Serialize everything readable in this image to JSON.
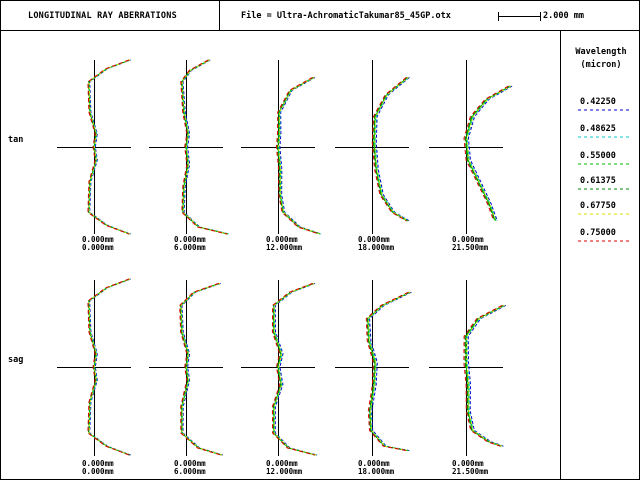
{
  "header": {
    "title": "LONGITUDINAL RAY ABERRATIONS",
    "file": "File = Ultra-AchromaticTakumar85_45GP.otx",
    "scale_label": "2.000 mm"
  },
  "legend": {
    "title_line1": "Wavelength",
    "title_line2": "(micron)",
    "entries": [
      {
        "label": "0.42250",
        "color": "#0000cc"
      },
      {
        "label": "0.48625",
        "color": "#00cccc"
      },
      {
        "label": "0.55000",
        "color": "#00bb00"
      },
      {
        "label": "0.61375",
        "color": "#008800"
      },
      {
        "label": "0.67750",
        "color": "#dddd00"
      },
      {
        "label": "0.75000",
        "color": "#dd0000"
      }
    ]
  },
  "rows": {
    "tan": "tan",
    "sag": "sag"
  },
  "fields": [
    {
      "line1": "0.000mm",
      "line2": "0.000mm"
    },
    {
      "line1": "0.000mm",
      "line2": "6.000mm"
    },
    {
      "line1": "0.000mm",
      "line2": "12.000mm"
    },
    {
      "line1": "0.000mm",
      "line2": "18.000mm"
    },
    {
      "line1": "0.000mm",
      "line2": "21.500mm"
    }
  ],
  "chart_data": {
    "type": "line",
    "xlabel": "",
    "ylabel": "",
    "scale_mm": 2.0,
    "description_axes": "x = longitudinal focus shift (mm), y = normalized pupil height -1..1",
    "panels": [
      {
        "row": "tan",
        "field_mm": 0.0,
        "points": [
          [
            1.7,
            1
          ],
          [
            0.6,
            0.9
          ],
          [
            -0.25,
            0.75
          ],
          [
            -0.2,
            0.4
          ],
          [
            0.1,
            0.15
          ],
          [
            0,
            0
          ],
          [
            0.1,
            -0.15
          ],
          [
            -0.2,
            -0.4
          ],
          [
            -0.25,
            -0.75
          ],
          [
            0.6,
            -0.9
          ],
          [
            1.7,
            -1
          ]
        ]
      },
      {
        "row": "tan",
        "field_mm": 6.0,
        "points": [
          [
            1.1,
            1
          ],
          [
            0.2,
            0.88
          ],
          [
            -0.2,
            0.75
          ],
          [
            -0.1,
            0.4
          ],
          [
            0.1,
            0.15
          ],
          [
            0,
            0
          ],
          [
            0.1,
            -0.2
          ],
          [
            -0.1,
            -0.45
          ],
          [
            -0.15,
            -0.75
          ],
          [
            0.6,
            -0.92
          ],
          [
            2.0,
            -1
          ]
        ]
      },
      {
        "row": "tan",
        "field_mm": 12.0,
        "points": [
          [
            1.7,
            0.8
          ],
          [
            0.6,
            0.65
          ],
          [
            0.05,
            0.4
          ],
          [
            0.05,
            0.15
          ],
          [
            0,
            0
          ],
          [
            0.1,
            -0.25
          ],
          [
            0.1,
            -0.55
          ],
          [
            0.25,
            -0.75
          ],
          [
            1.0,
            -0.92
          ],
          [
            2.0,
            -1
          ]
        ]
      },
      {
        "row": "tan",
        "field_mm": 18.0,
        "points": [
          [
            1.7,
            0.8
          ],
          [
            0.7,
            0.6
          ],
          [
            0.15,
            0.35
          ],
          [
            0.1,
            0.05
          ],
          [
            0.2,
            -0.25
          ],
          [
            0.45,
            -0.55
          ],
          [
            1.0,
            -0.75
          ],
          [
            1.7,
            -0.85
          ]
        ]
      },
      {
        "row": "tan",
        "field_mm": 21.5,
        "points": [
          [
            2.1,
            0.7
          ],
          [
            1.0,
            0.55
          ],
          [
            0.3,
            0.35
          ],
          [
            0,
            0.1
          ],
          [
            0.1,
            -0.15
          ],
          [
            0.6,
            -0.4
          ],
          [
            1.1,
            -0.65
          ],
          [
            1.4,
            -0.85
          ]
        ]
      },
      {
        "row": "sag",
        "field_mm": 0.0,
        "points": [
          [
            1.7,
            1
          ],
          [
            0.6,
            0.9
          ],
          [
            -0.25,
            0.75
          ],
          [
            -0.2,
            0.4
          ],
          [
            0.1,
            0.15
          ],
          [
            0,
            0
          ],
          [
            0.1,
            -0.15
          ],
          [
            -0.2,
            -0.4
          ],
          [
            -0.25,
            -0.75
          ],
          [
            0.6,
            -0.9
          ],
          [
            1.7,
            -1
          ]
        ]
      },
      {
        "row": "sag",
        "field_mm": 6.0,
        "points": [
          [
            1.6,
            0.95
          ],
          [
            0.4,
            0.85
          ],
          [
            -0.25,
            0.7
          ],
          [
            -0.2,
            0.4
          ],
          [
            0.1,
            0.15
          ],
          [
            0,
            0
          ],
          [
            0.1,
            -0.15
          ],
          [
            -0.2,
            -0.45
          ],
          [
            -0.2,
            -0.75
          ],
          [
            0.6,
            -0.92
          ],
          [
            1.7,
            -1
          ]
        ]
      },
      {
        "row": "sag",
        "field_mm": 12.0,
        "points": [
          [
            1.7,
            0.95
          ],
          [
            0.6,
            0.85
          ],
          [
            -0.2,
            0.7
          ],
          [
            -0.2,
            0.4
          ],
          [
            0.15,
            0.15
          ],
          [
            0,
            0
          ],
          [
            0.15,
            -0.2
          ],
          [
            -0.2,
            -0.45
          ],
          [
            -0.2,
            -0.75
          ],
          [
            0.5,
            -0.92
          ],
          [
            1.8,
            -1
          ]
        ]
      },
      {
        "row": "sag",
        "field_mm": 18.0,
        "points": [
          [
            1.8,
            0.85
          ],
          [
            0.5,
            0.7
          ],
          [
            -0.2,
            0.55
          ],
          [
            -0.15,
            0.3
          ],
          [
            0.15,
            0.05
          ],
          [
            0.1,
            -0.2
          ],
          [
            -0.1,
            -0.5
          ],
          [
            -0.05,
            -0.72
          ],
          [
            0.6,
            -0.9
          ],
          [
            1.7,
            -0.95
          ]
        ]
      },
      {
        "row": "sag",
        "field_mm": 21.5,
        "points": [
          [
            1.8,
            0.7
          ],
          [
            0.6,
            0.55
          ],
          [
            0,
            0.35
          ],
          [
            0,
            0.05
          ],
          [
            0.1,
            -0.2
          ],
          [
            0.1,
            -0.5
          ],
          [
            0.3,
            -0.72
          ],
          [
            1.1,
            -0.85
          ],
          [
            1.7,
            -0.9
          ]
        ]
      }
    ],
    "series_offsets_mm": [
      0.06,
      0.03,
      0.0,
      -0.02,
      0.02,
      -0.05
    ]
  }
}
